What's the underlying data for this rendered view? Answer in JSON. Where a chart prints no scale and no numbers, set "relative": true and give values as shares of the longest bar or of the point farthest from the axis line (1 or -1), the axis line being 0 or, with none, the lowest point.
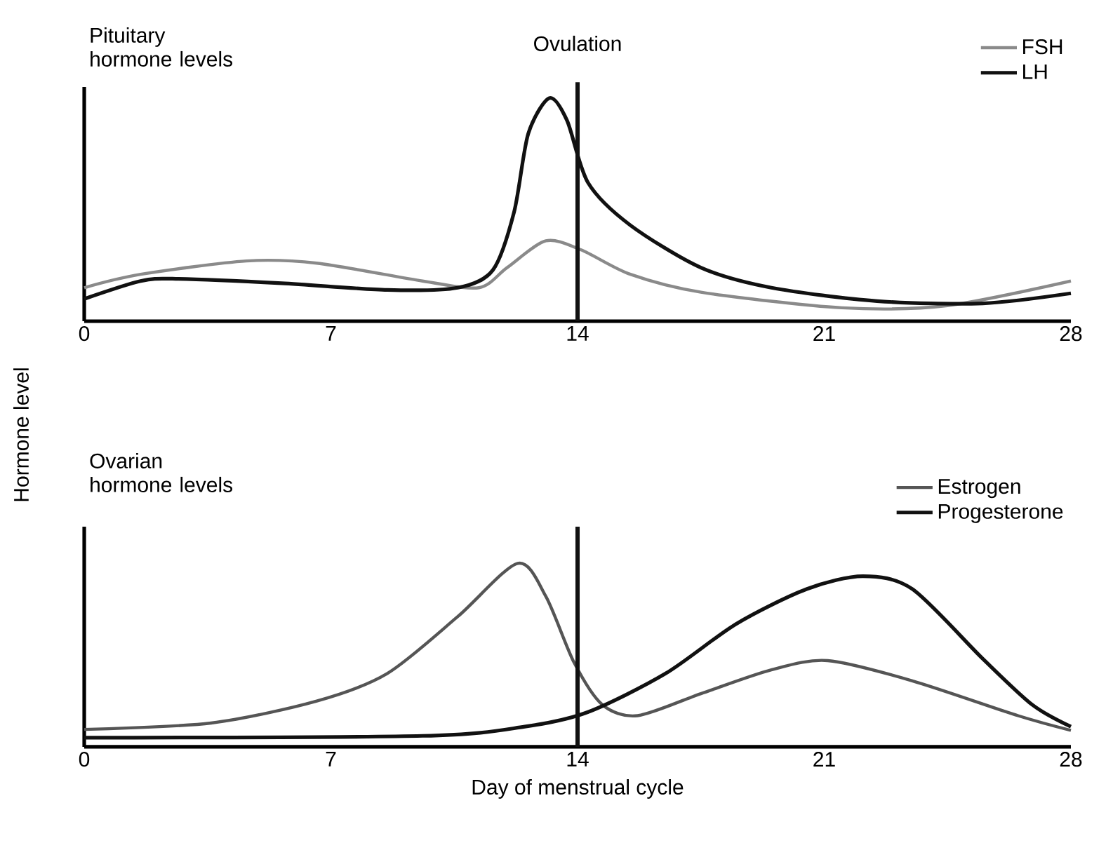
{
  "chart_data": [
    {
      "type": "line",
      "title": "Pituitary hormone levels",
      "ylabel": "Hormone level",
      "relative": true,
      "legend": "top right",
      "xlim": [
        0,
        28
      ],
      "xticks": [
        0,
        7,
        14,
        21,
        28
      ],
      "ref_lines": [
        {
          "axis": "x",
          "value": 14,
          "label": "Ovulation",
          "color": "#111111"
        }
      ],
      "series": [
        {
          "name": "FSH",
          "color": "#8a8a8a",
          "x": [
            0,
            1.6,
            4.6,
            6.6,
            9.6,
            11.2,
            12.0,
            13.1,
            14.1,
            15.5,
            17.5,
            21.5,
            24.5,
            28
          ],
          "values": [
            0.15,
            0.21,
            0.27,
            0.26,
            0.18,
            0.15,
            0.24,
            0.36,
            0.32,
            0.21,
            0.13,
            0.06,
            0.07,
            0.18
          ]
        },
        {
          "name": "LH",
          "color": "#111111",
          "x": [
            0,
            1.6,
            2.6,
            5.6,
            8.6,
            10.6,
            11.6,
            12.2,
            12.6,
            13.2,
            13.7,
            14.3,
            15.5,
            17.5,
            19.5,
            22.5,
            25.5,
            28
          ],
          "values": [
            0.1,
            0.18,
            0.19,
            0.17,
            0.14,
            0.15,
            0.23,
            0.49,
            0.84,
            1.0,
            0.9,
            0.62,
            0.43,
            0.24,
            0.15,
            0.09,
            0.08,
            0.125
          ]
        }
      ]
    },
    {
      "type": "line",
      "title": "Ovarian hormone levels",
      "xlabel": "Day of menstrual cycle",
      "relative": true,
      "legend": "top right",
      "xlim": [
        0,
        28
      ],
      "xticks": [
        0,
        7,
        14,
        21,
        28
      ],
      "ref_lines": [
        {
          "axis": "x",
          "value": 14,
          "color": "#111111"
        }
      ],
      "series": [
        {
          "name": "Estrogen",
          "color": "#555555",
          "x": [
            0,
            3.6,
            6.6,
            8.6,
            10.6,
            12.3,
            13.1,
            13.9,
            14.7,
            15.7,
            17.5,
            19.5,
            21.1,
            23.5,
            26.5,
            28
          ],
          "values": [
            0.095,
            0.13,
            0.25,
            0.4,
            0.71,
            1.0,
            0.82,
            0.46,
            0.23,
            0.17,
            0.29,
            0.42,
            0.47,
            0.36,
            0.17,
            0.09
          ]
        },
        {
          "name": "Progesterone",
          "color": "#111111",
          "x": [
            0,
            9.6,
            12.5,
            14.3,
            16.5,
            18.5,
            20.5,
            22.1,
            23.5,
            25.5,
            26.9,
            28
          ],
          "values": [
            0.05,
            0.06,
            0.11,
            0.19,
            0.4,
            0.67,
            0.86,
            0.93,
            0.86,
            0.48,
            0.23,
            0.11
          ]
        }
      ]
    }
  ]
}
